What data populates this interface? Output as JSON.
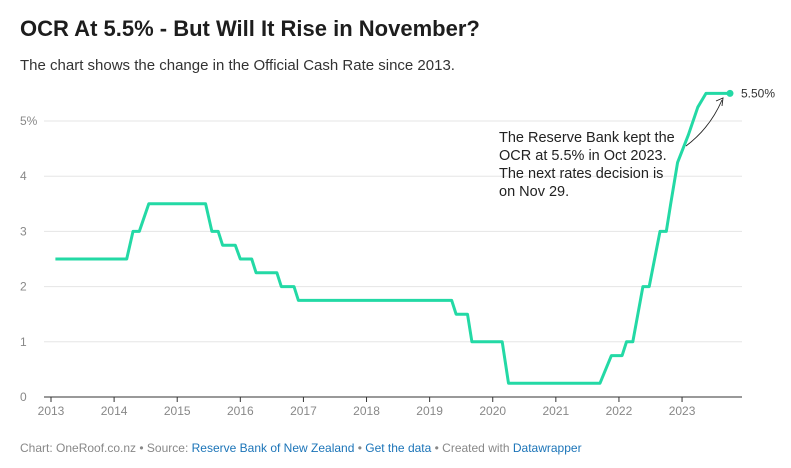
{
  "header": {
    "title": "OCR At 5.5% - But Will It Rise in November?",
    "subtitle": "The chart shows the change in the Official Cash Rate since 2013."
  },
  "annotation": {
    "lines": [
      "The Reserve Bank kept the",
      "OCR at 5.5% in Oct 2023.",
      "The next rates decision is",
      "on Nov 29."
    ]
  },
  "end_label": "5.50%",
  "footer": {
    "prefix": "Chart: OneRoof.co.nz • Source: ",
    "source_link": "Reserve Bank of New Zealand",
    "sep1": " • ",
    "data_link": "Get the data",
    "sep2": " • Created with ",
    "tool_link": "Datawrapper"
  },
  "colors": {
    "line": "#23d9a5",
    "grid": "#e5e5e5",
    "axis": "#333333",
    "tick_text": "#888888"
  },
  "chart_data": {
    "type": "line",
    "title": "OCR At 5.5% - But Will It Rise in November?",
    "xlabel": "",
    "ylabel": "",
    "xlim": [
      2013,
      2023.95
    ],
    "ylim": [
      0,
      5.5
    ],
    "x_ticks": [
      2013,
      2014,
      2015,
      2016,
      2017,
      2018,
      2019,
      2020,
      2021,
      2022,
      2023
    ],
    "x_tick_labels": [
      "2013",
      "2014",
      "2015",
      "2016",
      "2017",
      "2018",
      "2019",
      "2020",
      "2021",
      "2022",
      "2023"
    ],
    "y_ticks": [
      0,
      1,
      2,
      3,
      4,
      5
    ],
    "y_tick_labels": [
      "0",
      "1",
      "2",
      "3",
      "4",
      "5%"
    ],
    "grid": true,
    "series": [
      {
        "points": [
          [
            2013.07,
            2.5
          ],
          [
            2014.2,
            2.5
          ],
          [
            2014.3,
            3.0
          ],
          [
            2014.4,
            3.0
          ],
          [
            2014.55,
            3.5
          ],
          [
            2015.45,
            3.5
          ],
          [
            2015.55,
            3.0
          ],
          [
            2015.65,
            3.0
          ],
          [
            2015.72,
            2.75
          ],
          [
            2015.92,
            2.75
          ],
          [
            2016.0,
            2.5
          ],
          [
            2016.18,
            2.5
          ],
          [
            2016.25,
            2.25
          ],
          [
            2016.58,
            2.25
          ],
          [
            2016.65,
            2.0
          ],
          [
            2016.85,
            2.0
          ],
          [
            2016.92,
            1.75
          ],
          [
            2019.35,
            1.75
          ],
          [
            2019.42,
            1.5
          ],
          [
            2019.6,
            1.5
          ],
          [
            2019.67,
            1.0
          ],
          [
            2020.15,
            1.0
          ],
          [
            2020.25,
            0.25
          ],
          [
            2021.7,
            0.25
          ],
          [
            2021.88,
            0.75
          ],
          [
            2022.05,
            0.75
          ],
          [
            2022.12,
            1.0
          ],
          [
            2022.22,
            1.0
          ],
          [
            2022.38,
            2.0
          ],
          [
            2022.48,
            2.0
          ],
          [
            2022.65,
            3.0
          ],
          [
            2022.75,
            3.0
          ],
          [
            2022.82,
            3.5
          ],
          [
            2022.93,
            4.25
          ],
          [
            2023.1,
            4.75
          ],
          [
            2023.25,
            5.25
          ],
          [
            2023.38,
            5.5
          ],
          [
            2023.76,
            5.5
          ]
        ]
      }
    ]
  }
}
